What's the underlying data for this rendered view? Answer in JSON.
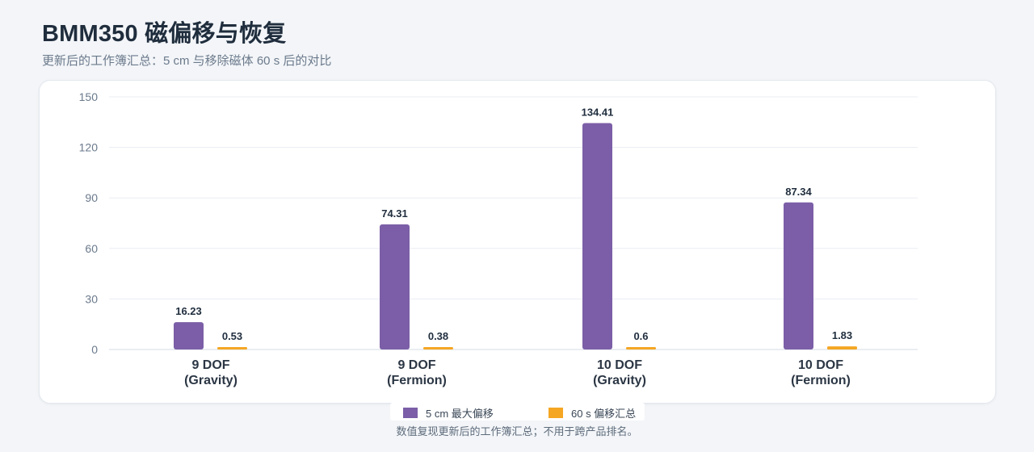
{
  "header": {
    "title": "BMM350 磁偏移与恢复",
    "subtitle": "更新后的工作簿汇总：5 cm 与移除磁体 60 s 后的对比"
  },
  "footer": {
    "note": "数值复现更新后的工作簿汇总；不用于跨产品排名。"
  },
  "chart_data": {
    "type": "bar",
    "title": "BMM350 磁偏移与恢复",
    "subtitle": "更新后的工作簿汇总：5 cm 与移除磁体 60 s 后的对比",
    "xlabel": "",
    "ylabel": "",
    "ylim": [
      0,
      150
    ],
    "yticks": [
      0,
      30,
      60,
      90,
      120,
      150
    ],
    "grid": true,
    "legend_position": "bottom-center",
    "categories": [
      [
        "9 DOF",
        "(Gravity)"
      ],
      [
        "9 DOF",
        "(Fermion)"
      ],
      [
        "10 DOF",
        "(Gravity)"
      ],
      [
        "10 DOF",
        "(Fermion)"
      ]
    ],
    "series": [
      {
        "name": "5 cm 最大偏移",
        "color": "#7b5ea7",
        "values": [
          16.23,
          74.31,
          134.41,
          87.34
        ],
        "labels": [
          "16.23",
          "74.31",
          "134.41",
          "87.34"
        ]
      },
      {
        "name": "60 s 偏移汇总",
        "color": "#f5a623",
        "values": [
          0.53,
          0.38,
          0.6,
          1.83
        ],
        "labels": [
          "0.53",
          "0.38",
          "0.6",
          "1.83"
        ]
      }
    ]
  }
}
